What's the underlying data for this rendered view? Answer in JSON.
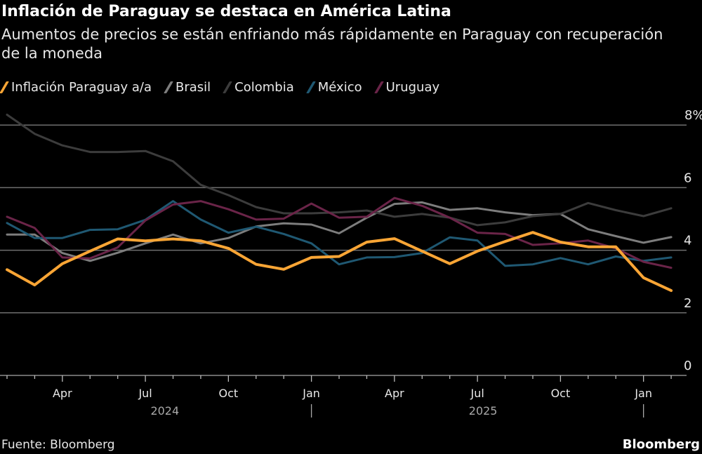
{
  "title": "Inflación de Paraguay se destaca en América Latina",
  "subtitle": "Aumentos de precios se están enfriando más rápidamente en Paraguay con recuperación de la moneda",
  "source": "Fuente: Bloomberg",
  "logo": "Bloomberg",
  "chart_data": {
    "type": "line",
    "x": [
      "2024-02",
      "2024-03",
      "2024-04",
      "2024-05",
      "2024-06",
      "2024-07",
      "2024-08",
      "2024-09",
      "2024-10",
      "2024-11",
      "2024-12",
      "2025-01",
      "2025-02",
      "2025-03",
      "2025-04",
      "2025-05",
      "2025-06",
      "2025-07",
      "2025-08",
      "2025-09",
      "2025-10",
      "2025-11",
      "2025-12",
      "2026-01",
      "2026-02"
    ],
    "x_ticks": [
      {
        "index": 2,
        "label": "Apr"
      },
      {
        "index": 5,
        "label": "Jul"
      },
      {
        "index": 8,
        "label": "Oct"
      },
      {
        "index": 11,
        "label": "Jan"
      },
      {
        "index": 14,
        "label": "Apr"
      },
      {
        "index": 17,
        "label": "Jul"
      },
      {
        "index": 20,
        "label": "Oct"
      },
      {
        "index": 23,
        "label": "Jan"
      }
    ],
    "year_labels": [
      {
        "index": 5.5,
        "label": "2024"
      },
      {
        "index": 17,
        "label": "2025"
      }
    ],
    "year_separators": [
      11,
      23
    ],
    "y_ticks": [
      {
        "value": 8,
        "label": "8%"
      },
      {
        "value": 6,
        "label": "6"
      },
      {
        "value": 4,
        "label": "4"
      },
      {
        "value": 2,
        "label": "2"
      },
      {
        "value": 0,
        "label": "0"
      }
    ],
    "ylim": [
      0,
      8
    ],
    "grid": true,
    "legend": "top",
    "series": [
      {
        "name": "Inflación Paraguay a/a",
        "color": "#f9a535",
        "values": [
          3.38,
          2.89,
          3.57,
          3.97,
          4.36,
          4.3,
          4.36,
          4.3,
          4.06,
          3.55,
          3.39,
          3.77,
          3.8,
          4.26,
          4.37,
          3.97,
          3.57,
          3.97,
          4.28,
          4.57,
          4.26,
          4.11,
          4.11,
          3.12,
          2.71
        ]
      },
      {
        "name": "Brasil",
        "color": "#7d7d7d",
        "values": [
          4.5,
          4.5,
          3.91,
          3.66,
          3.92,
          4.22,
          4.5,
          4.22,
          4.39,
          4.76,
          4.86,
          4.82,
          4.54,
          5.04,
          5.48,
          5.53,
          5.29,
          5.34,
          5.21,
          5.12,
          5.16,
          4.67,
          4.45,
          4.24,
          4.42
        ]
      },
      {
        "name": "Colombia",
        "color": "#3c3c3c",
        "values": [
          8.33,
          7.72,
          7.35,
          7.14,
          7.14,
          7.17,
          6.84,
          6.09,
          5.76,
          5.38,
          5.18,
          5.18,
          5.21,
          5.27,
          5.07,
          5.16,
          5.04,
          4.8,
          4.89,
          5.09,
          5.16,
          5.51,
          5.28,
          5.09,
          5.34
        ]
      },
      {
        "name": "México",
        "color": "#1f5872",
        "values": [
          4.87,
          4.39,
          4.39,
          4.65,
          4.67,
          4.97,
          5.57,
          4.98,
          4.56,
          4.75,
          4.52,
          4.22,
          3.55,
          3.77,
          3.78,
          3.91,
          4.41,
          4.31,
          3.5,
          3.55,
          3.75,
          3.55,
          3.8,
          3.66,
          3.77
        ]
      },
      {
        "name": "Uruguay",
        "color": "#6a2448",
        "values": [
          5.07,
          4.71,
          3.77,
          3.74,
          4.09,
          4.95,
          5.46,
          5.57,
          5.31,
          4.98,
          5.01,
          5.49,
          5.04,
          5.07,
          5.67,
          5.42,
          5.04,
          4.56,
          4.52,
          4.17,
          4.22,
          4.31,
          4.06,
          3.63,
          3.44
        ]
      }
    ]
  }
}
